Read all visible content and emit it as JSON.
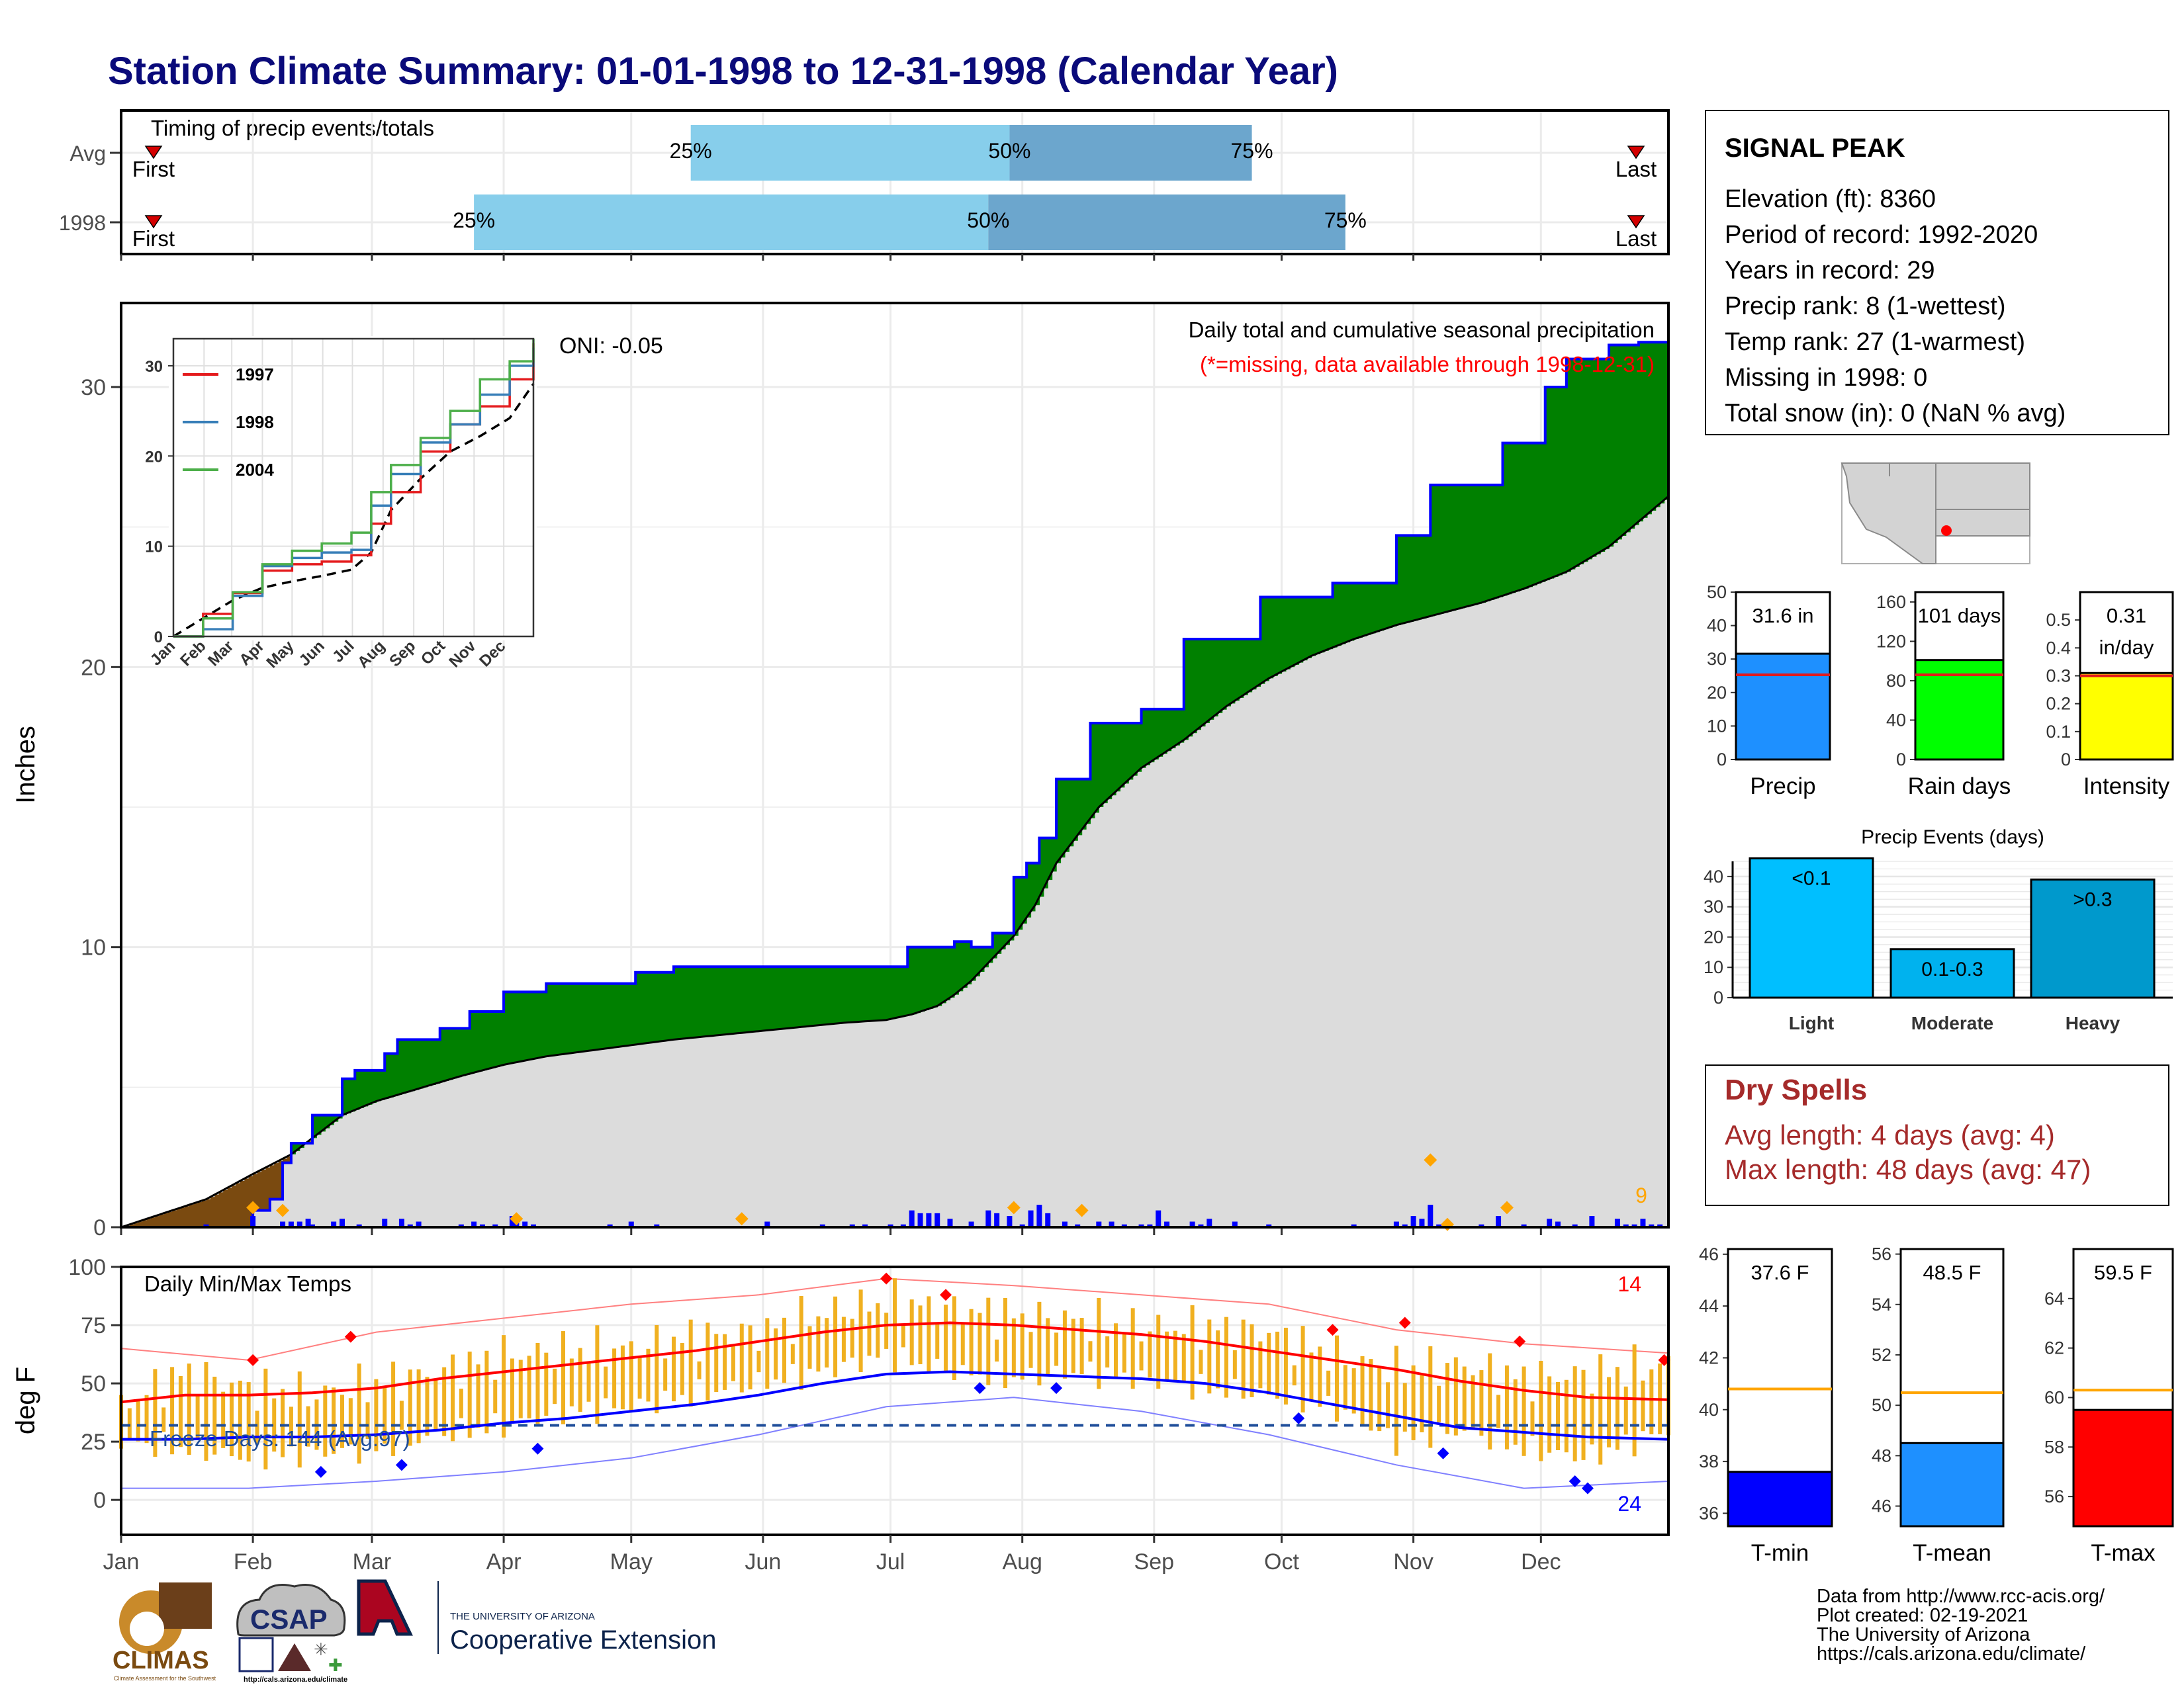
{
  "title": "Station Climate Summary: 01-01-1998 to 12-31-1998 (Calendar Year)",
  "colors": {
    "title": "#0a0a7a",
    "q_light": "#87ceeb",
    "q_dark": "#6ca6cd",
    "marker": "#d40000",
    "green": "#008000",
    "brown": "#7a4a10",
    "gray_fill": "#dcdcdc",
    "blue": "#0000ff",
    "orange": "#ffa500",
    "gold": "#f0b020",
    "red": "#ff0000",
    "precip_bar": "#1e90ff",
    "rain_bar": "#00ff00",
    "intensity_bar": "#ffff00",
    "light_bar": "#00bfff",
    "mod_bar": "#00b2ee",
    "heavy_bar": "#0099cc",
    "tmin_bar": "#0000ff",
    "tmean_bar": "#1e90ff",
    "tmax_bar": "#ff0000",
    "dry_text": "#a52a2a"
  },
  "month_labels": [
    "Jan",
    "Feb",
    "Mar",
    "Apr",
    "May",
    "Jun",
    "Jul",
    "Aug",
    "Sep",
    "Oct",
    "Nov",
    "Dec"
  ],
  "timing": {
    "label": "Timing of precip events/totals",
    "first_label": "First",
    "last_label": "Last",
    "rows": [
      {
        "name": "Avg",
        "q25_day": 134,
        "q50_day": 209,
        "q75_day": 266,
        "p25": "25%",
        "p50": "50%",
        "p75": "75%"
      },
      {
        "name": "1998",
        "q25_day": 83,
        "q50_day": 204,
        "q75_day": 288,
        "p25": "25%",
        "p50": "50%",
        "p75": "75%"
      }
    ]
  },
  "station": {
    "name": "SIGNAL PEAK",
    "lines": [
      "Elevation (ft): 8360",
      "Period of record: 1992-2020",
      "Years in record: 29",
      "Precip rank: 8 (1-wettest)",
      "Temp rank: 27 (1-warmest)",
      "Missing in 1998: 0",
      "Total snow (in): 0 (NaN % avg)"
    ]
  },
  "precip_panel": {
    "ylabel": "Inches",
    "annot_title": "Daily total and cumulative seasonal precipitation",
    "annot_missing": "(*=missing, data available through 1998-12-31)",
    "oni": "ONI: -0.05",
    "max_daily_label": "9",
    "yticks": [
      0,
      10,
      20,
      30
    ]
  },
  "chart_data": [
    {
      "type": "area",
      "title": "Daily total and cumulative seasonal precipitation",
      "ylabel": "Inches",
      "ylim": [
        0,
        33
      ],
      "series": [
        {
          "name": "1998 cumulative",
          "x": [
            0,
            20,
            31,
            35,
            38,
            40,
            45,
            52,
            55,
            62,
            65,
            75,
            82,
            90,
            100,
            108,
            114,
            121,
            130,
            140,
            150,
            160,
            170,
            175,
            180,
            185,
            188,
            190,
            196,
            200,
            205,
            210,
            213,
            216,
            220,
            225,
            228,
            233,
            240,
            250,
            258,
            268,
            275,
            285,
            295,
            300,
            308,
            316,
            325,
            330,
            335,
            340,
            350,
            357,
            364
          ],
          "y": [
            0,
            0,
            0.6,
            1.0,
            2.3,
            3.0,
            4.0,
            5.3,
            5.6,
            6.2,
            6.7,
            7.1,
            7.7,
            8.4,
            8.7,
            8.7,
            8.7,
            9.1,
            9.3,
            9.3,
            9.3,
            9.3,
            9.3,
            9.3,
            9.3,
            10.0,
            10.0,
            10.0,
            10.2,
            10.0,
            10.5,
            12.5,
            13.0,
            13.9,
            16.0,
            16.0,
            18.0,
            18.0,
            18.5,
            21.0,
            21.0,
            22.5,
            22.5,
            23.0,
            23.0,
            24.7,
            26.5,
            26.5,
            28.0,
            28.0,
            30.0,
            31.0,
            31.5,
            31.6,
            31.6
          ]
        },
        {
          "name": "Average cumulative",
          "x": [
            0,
            20,
            31,
            40,
            52,
            60,
            80,
            90,
            100,
            130,
            150,
            170,
            180,
            186,
            192,
            196,
            200,
            205,
            210,
            215,
            220,
            230,
            240,
            250,
            260,
            270,
            280,
            290,
            300,
            310,
            320,
            330,
            340,
            350,
            364
          ],
          "y": [
            0,
            1.0,
            1.9,
            2.6,
            4.0,
            4.5,
            5.4,
            5.8,
            6.1,
            6.7,
            7.0,
            7.3,
            7.4,
            7.6,
            7.9,
            8.3,
            8.8,
            9.6,
            10.4,
            11.5,
            13.0,
            15.0,
            16.4,
            17.4,
            18.6,
            19.6,
            20.4,
            21.0,
            21.5,
            21.9,
            22.3,
            22.8,
            23.4,
            24.3,
            26.1
          ]
        },
        {
          "name": "Daily precip",
          "x": [
            20,
            31,
            38,
            40,
            42,
            44,
            45,
            50,
            52,
            56,
            62,
            66,
            68,
            70,
            80,
            83,
            85,
            88,
            92,
            93,
            95,
            97,
            115,
            120,
            126,
            152,
            165,
            172,
            175,
            181,
            184,
            186,
            188,
            190,
            192,
            195,
            200,
            204,
            206,
            209,
            212,
            214,
            216,
            218,
            222,
            225,
            230,
            233,
            236,
            240,
            242,
            244,
            246,
            252,
            254,
            256,
            262,
            270,
            290,
            300,
            302,
            304,
            306,
            308,
            310,
            312,
            320,
            324,
            330,
            336,
            338,
            342,
            346,
            352,
            354,
            356,
            358,
            360,
            362
          ],
          "y": [
            0.1,
            0.4,
            0.2,
            0.2,
            0.2,
            0.3,
            0.1,
            0.2,
            0.3,
            0.1,
            0.3,
            0.3,
            0.1,
            0.2,
            0.1,
            0.2,
            0.1,
            0.1,
            0.4,
            0.2,
            0.2,
            0.1,
            0.1,
            0.2,
            0.1,
            0.2,
            0.1,
            0.1,
            0.1,
            0.1,
            0.1,
            0.6,
            0.5,
            0.5,
            0.5,
            0.3,
            0.2,
            0.6,
            0.5,
            0.4,
            0.1,
            0.6,
            0.8,
            0.5,
            0.2,
            0.1,
            0.2,
            0.2,
            0.1,
            0.1,
            0.1,
            0.6,
            0.2,
            0.2,
            0.1,
            0.3,
            0.2,
            0.1,
            0.1,
            0.2,
            0.1,
            0.4,
            0.3,
            0.8,
            0.1,
            0.1,
            0.1,
            0.4,
            0.1,
            0.3,
            0.2,
            0.1,
            0.4,
            0.3,
            0.1,
            0.1,
            0.3,
            0.1,
            0.1
          ]
        },
        {
          "name": "Extreme precip markers",
          "x": [
            31,
            38,
            93,
            146,
            210,
            226,
            308,
            312,
            326
          ],
          "y": [
            0.7,
            0.6,
            0.3,
            0.3,
            0.7,
            0.6,
            2.4,
            0.1,
            0.7
          ]
        }
      ]
    },
    {
      "type": "line",
      "title": "Daily Min/Max Temps",
      "ylabel": "deg F",
      "ylim": [
        -15,
        100
      ],
      "yticks": [
        0,
        25,
        50,
        75,
        100
      ],
      "label_max_count": "14",
      "label_min_count": "24",
      "freeze_text": "Freeze Days: 144 (Avg:97)",
      "freeze_line": 32,
      "series": [
        {
          "name": "Avg max",
          "x": [
            0,
            15,
            30,
            45,
            60,
            75,
            90,
            105,
            120,
            135,
            150,
            165,
            180,
            195,
            210,
            225,
            240,
            255,
            270,
            285,
            300,
            315,
            330,
            345,
            364
          ],
          "y": [
            42,
            45,
            45,
            46,
            48,
            52,
            55,
            58,
            61,
            64,
            68,
            72,
            75,
            76,
            75,
            73,
            71,
            68,
            64,
            60,
            56,
            51,
            47,
            44,
            43
          ]
        },
        {
          "name": "Avg min",
          "x": [
            0,
            15,
            30,
            45,
            60,
            75,
            90,
            105,
            120,
            135,
            150,
            165,
            180,
            195,
            210,
            225,
            240,
            255,
            270,
            285,
            300,
            315,
            330,
            345,
            364
          ],
          "y": [
            26,
            26,
            27,
            27,
            28,
            30,
            33,
            35,
            38,
            41,
            45,
            50,
            54,
            55,
            54,
            53,
            52,
            50,
            46,
            41,
            36,
            31,
            29,
            27,
            26
          ]
        },
        {
          "name": "Record max",
          "x": [
            0,
            30,
            60,
            90,
            120,
            150,
            180,
            210,
            240,
            270,
            300,
            330,
            364
          ],
          "y": [
            65,
            60,
            72,
            78,
            84,
            88,
            95,
            92,
            88,
            84,
            73,
            67,
            63
          ]
        },
        {
          "name": "Record min",
          "x": [
            0,
            30,
            60,
            90,
            120,
            150,
            180,
            210,
            240,
            270,
            300,
            330,
            364
          ],
          "y": [
            5,
            5,
            8,
            12,
            18,
            28,
            40,
            44,
            38,
            28,
            15,
            5,
            8
          ]
        },
        {
          "name": "Daily max 1998",
          "x": [
            0,
            15,
            30,
            45,
            60,
            75,
            90,
            105,
            120,
            135,
            150,
            165,
            180,
            195,
            210,
            225,
            240,
            255,
            270,
            285,
            300,
            315,
            330,
            345,
            364
          ],
          "y": [
            40,
            55,
            48,
            45,
            50,
            55,
            62,
            64,
            65,
            70,
            72,
            80,
            85,
            82,
            79,
            77,
            74,
            74,
            72,
            62,
            56,
            58,
            52,
            54,
            58
          ]
        },
        {
          "name": "Daily min 1998",
          "x": [
            0,
            15,
            30,
            45,
            60,
            75,
            90,
            105,
            120,
            135,
            150,
            165,
            180,
            195,
            210,
            225,
            240,
            255,
            270,
            285,
            300,
            315,
            330,
            345,
            364
          ],
          "y": [
            25,
            22,
            18,
            20,
            22,
            28,
            32,
            38,
            40,
            45,
            50,
            55,
            62,
            55,
            52,
            55,
            52,
            48,
            45,
            40,
            25,
            30,
            22,
            18,
            30
          ]
        }
      ]
    },
    {
      "type": "bar",
      "title": "Precip",
      "categories": [
        "Precip"
      ],
      "values": [
        31.6
      ],
      "value_label": "31.6 in",
      "avg": 25.3,
      "ylim": [
        0,
        50
      ],
      "yticks": [
        0,
        10,
        20,
        30,
        40,
        50
      ]
    },
    {
      "type": "bar",
      "title": "Rain days",
      "categories": [
        "Rain days"
      ],
      "values": [
        101
      ],
      "value_label": "101 days",
      "avg": 86,
      "ylim": [
        0,
        170
      ],
      "yticks": [
        0,
        40,
        80,
        120,
        160
      ]
    },
    {
      "type": "bar",
      "title": "Intensity",
      "categories": [
        "Intensity"
      ],
      "values": [
        0.31
      ],
      "value_label": "0.31",
      "value_label2": "in/day",
      "avg": 0.3,
      "ylim": [
        0,
        0.6
      ],
      "yticks": [
        0.0,
        0.1,
        0.2,
        0.3,
        0.4,
        0.5
      ]
    },
    {
      "type": "bar",
      "title": "Precip Events (days)",
      "categories": [
        "Light",
        "Moderate",
        "Heavy"
      ],
      "values": [
        46,
        16,
        39
      ],
      "bar_labels": [
        "<0.1",
        "0.1-0.3",
        ">0.3"
      ],
      "ylim": [
        0,
        45
      ],
      "yticks": [
        0,
        10,
        20,
        30,
        40
      ]
    },
    {
      "type": "bar",
      "title": "T-min",
      "categories": [
        "T-min"
      ],
      "values": [
        37.6
      ],
      "value_label": "37.6 F",
      "avg": 40.8,
      "ylim": [
        35.5,
        46.2
      ],
      "yticks": [
        36,
        38,
        40,
        42,
        44,
        46
      ]
    },
    {
      "type": "bar",
      "title": "T-mean",
      "categories": [
        "T-mean"
      ],
      "values": [
        48.5
      ],
      "value_label": "48.5 F",
      "avg": 50.5,
      "ylim": [
        45.2,
        56.2
      ],
      "yticks": [
        46,
        48,
        50,
        52,
        54,
        56
      ]
    },
    {
      "type": "bar",
      "title": "T-max",
      "categories": [
        "T-max"
      ],
      "values": [
        59.5
      ],
      "value_label": "59.5 F",
      "avg": 60.3,
      "ylim": [
        54.8,
        66.0
      ],
      "yticks": [
        56,
        58,
        60,
        62,
        64
      ]
    }
  ],
  "inset": {
    "years": [
      "1997",
      "1998",
      "2004"
    ],
    "colors": [
      "#e41a1c",
      "#377eb8",
      "#4daf4a"
    ],
    "yticks": [
      0,
      10,
      20,
      30
    ],
    "months": [
      "Jan",
      "Feb",
      "Mar",
      "Apr",
      "May",
      "Jun",
      "Jul",
      "Aug",
      "Sep",
      "Oct",
      "Nov",
      "Dec"
    ],
    "avg_x": [
      0,
      30,
      60,
      90,
      120,
      150,
      180,
      200,
      220,
      250,
      280,
      310,
      340,
      364
    ],
    "avg_y": [
      0,
      2.0,
      4.0,
      5.4,
      6.1,
      6.7,
      7.4,
      9.3,
      14.0,
      17.5,
      20.5,
      22.2,
      24.2,
      28.0
    ],
    "lines": [
      {
        "x": [
          0,
          30,
          60,
          90,
          120,
          150,
          180,
          200,
          220,
          250,
          280,
          310,
          340,
          364
        ],
        "y": [
          0,
          2.5,
          4.8,
          7.3,
          8.0,
          8.3,
          9.0,
          12.5,
          16.0,
          20.5,
          23.5,
          25.5,
          28.5,
          32.5
        ]
      },
      {
        "x": [
          0,
          30,
          60,
          90,
          120,
          150,
          180,
          200,
          220,
          250,
          280,
          310,
          340,
          364
        ],
        "y": [
          0,
          0.8,
          4.5,
          7.8,
          8.7,
          9.3,
          9.6,
          14.5,
          18.0,
          21.5,
          23.5,
          26.8,
          30.0,
          32.0
        ]
      },
      {
        "x": [
          0,
          30,
          60,
          90,
          120,
          150,
          180,
          200,
          220,
          250,
          280,
          310,
          340,
          364
        ],
        "y": [
          0,
          2.0,
          4.9,
          8.0,
          9.5,
          10.3,
          11.5,
          16.0,
          19.0,
          22.0,
          25.0,
          28.5,
          30.5,
          33.0
        ]
      }
    ]
  },
  "dry_spells": {
    "title": "Dry Spells",
    "avg_line": "Avg length: 4 days (avg: 4)",
    "max_line": "Max length: 48 days (avg: 47)"
  },
  "credits": [
    "Data from http://www.rcc-acis.org/",
    "Plot created: 02-19-2021",
    "The University of Arizona",
    "https://cals.arizona.edu/climate/"
  ],
  "logos": {
    "climas": "CLIMAS",
    "climas_sub": "Climate Assessment for the Southwest",
    "csap": "CSAP",
    "csap_url": "http://cals.arizona.edu/climate",
    "ua_small": "THE UNIVERSITY OF ARIZONA",
    "ua_big": "Cooperative Extension"
  }
}
